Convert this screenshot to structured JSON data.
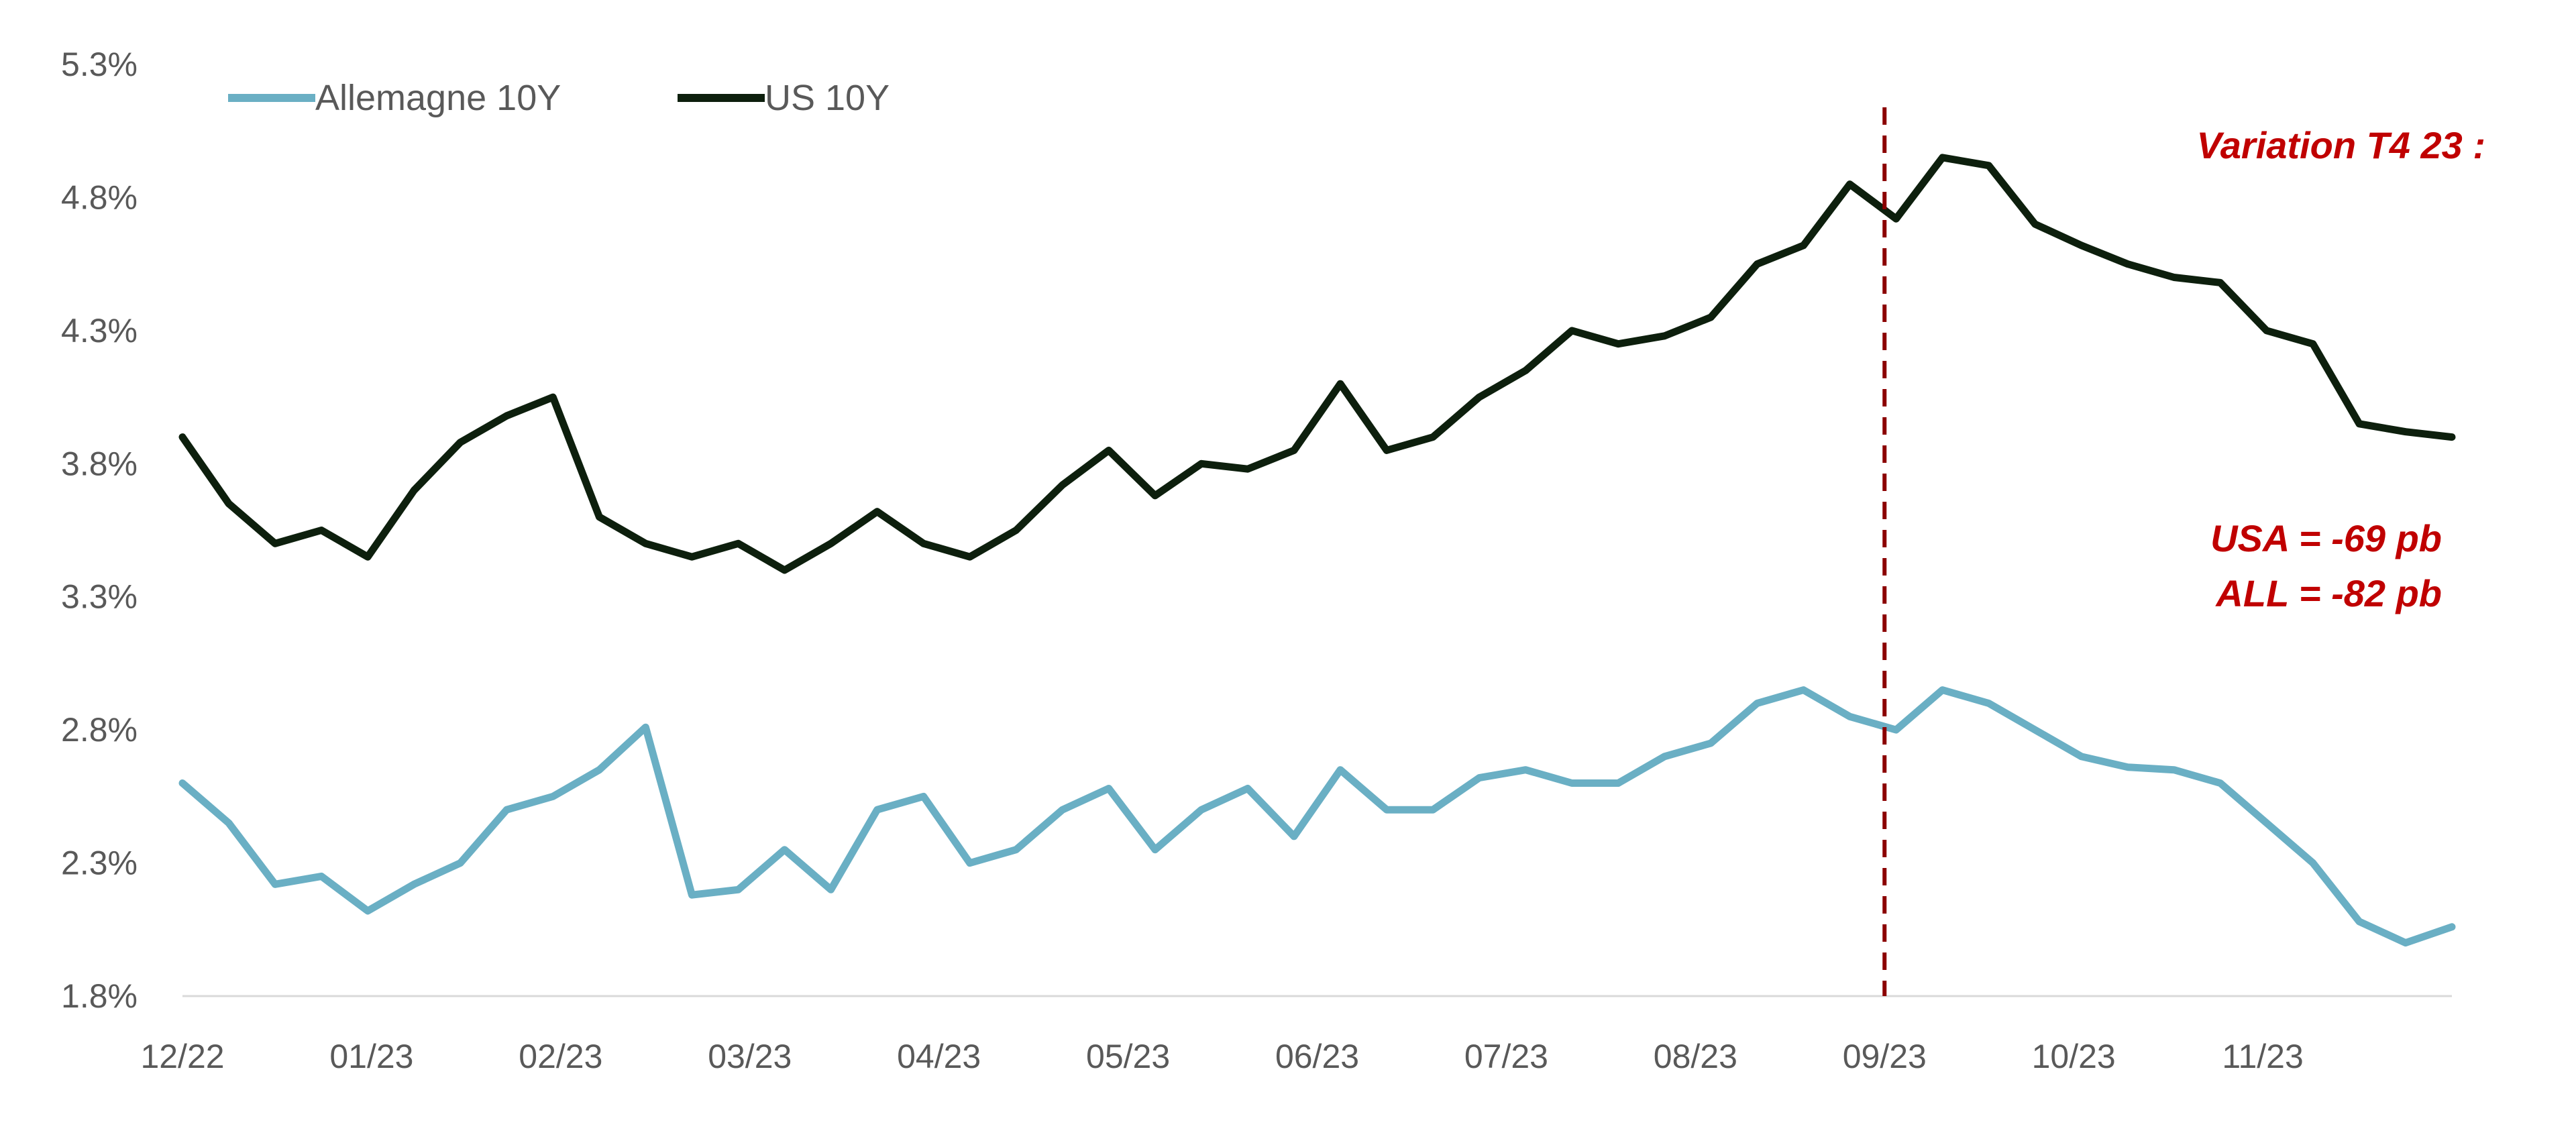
{
  "chart_data": {
    "type": "line",
    "title": "",
    "xlabel": "",
    "ylabel": "",
    "ylim": [
      1.8,
      5.3
    ],
    "yticks": [
      "1.8%",
      "2.3%",
      "2.8%",
      "3.3%",
      "3.8%",
      "4.3%",
      "4.8%",
      "5.3%"
    ],
    "ytick_values": [
      1.8,
      2.3,
      2.8,
      3.3,
      3.8,
      4.3,
      4.8,
      5.3
    ],
    "xticks": [
      "12/22",
      "01/23",
      "02/23",
      "03/23",
      "04/23",
      "05/23",
      "06/23",
      "07/23",
      "08/23",
      "09/23",
      "10/23",
      "11/23"
    ],
    "x_range": [
      "12/22",
      "12/23"
    ],
    "legend_position": "top-left",
    "grid": false,
    "x": [
      "12/22",
      "12/22",
      "12/22",
      "01/23",
      "01/23",
      "01/23",
      "01/23",
      "02/23",
      "02/23",
      "02/23",
      "02/23",
      "03/23",
      "03/23",
      "03/23",
      "03/23",
      "04/23",
      "04/23",
      "04/23",
      "04/23",
      "05/23",
      "05/23",
      "05/23",
      "05/23",
      "06/23",
      "06/23",
      "06/23",
      "06/23",
      "07/23",
      "07/23",
      "07/23",
      "07/23",
      "08/23",
      "08/23",
      "08/23",
      "08/23",
      "09/23",
      "09/23",
      "09/23",
      "09/23",
      "10/23",
      "10/23",
      "10/23",
      "10/23",
      "11/23",
      "11/23",
      "11/23",
      "11/23",
      "12/23",
      "12/23",
      "12/23"
    ],
    "series": [
      {
        "name": "Allemagne 10Y",
        "color": "#6aafc4",
        "values": [
          2.6,
          2.45,
          2.22,
          2.25,
          2.12,
          2.22,
          2.3,
          2.5,
          2.55,
          2.65,
          2.81,
          2.18,
          2.2,
          2.35,
          2.2,
          2.5,
          2.55,
          2.3,
          2.35,
          2.5,
          2.58,
          2.35,
          2.5,
          2.58,
          2.4,
          2.65,
          2.5,
          2.5,
          2.62,
          2.65,
          2.6,
          2.6,
          2.7,
          2.75,
          2.9,
          2.95,
          2.85,
          2.8,
          2.95,
          2.9,
          2.8,
          2.7,
          2.66,
          2.65,
          2.6,
          2.45,
          2.3,
          2.08,
          2.0,
          2.06
        ]
      },
      {
        "name": "US 10Y",
        "color": "#0d1f0d",
        "values": [
          3.9,
          3.65,
          3.5,
          3.55,
          3.45,
          3.7,
          3.88,
          3.98,
          4.05,
          3.6,
          3.5,
          3.45,
          3.5,
          3.4,
          3.5,
          3.62,
          3.5,
          3.45,
          3.55,
          3.72,
          3.85,
          3.68,
          3.8,
          3.78,
          3.85,
          4.1,
          3.85,
          3.9,
          4.05,
          4.15,
          4.3,
          4.25,
          4.28,
          4.35,
          4.55,
          4.62,
          4.85,
          4.72,
          4.95,
          4.92,
          4.7,
          4.62,
          4.55,
          4.5,
          4.48,
          4.3,
          4.25,
          3.95,
          3.92,
          3.9
        ]
      }
    ],
    "annotations": {
      "title": "Variation T4 23 :",
      "usa": "USA = -69 pb",
      "all": "ALL = -82 pb",
      "marker_x": "09/23",
      "marker_color": "#8b0000"
    }
  }
}
